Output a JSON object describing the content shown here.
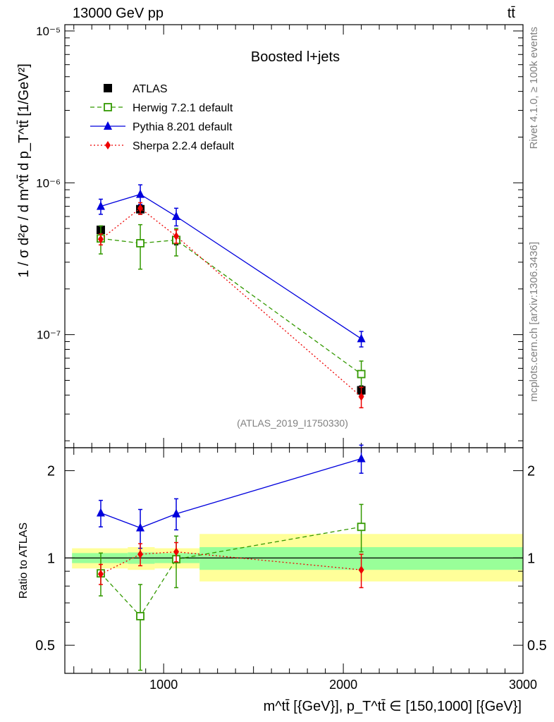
{
  "header": {
    "energy_label": "13000 GeV pp",
    "process_label": "tt̄"
  },
  "side": {
    "rivet_label": "Rivet 4.1.0, ≥ 100k events",
    "source_label": "mcplots.cern.ch [arXiv:1306.3436]"
  },
  "chart_data": [
    {
      "type": "line",
      "title": "Boosted l+jets",
      "analysis_label": "(ATLAS_2019_I1750330)",
      "ylabel": "1 / σ d²σ / d m^tt̄ d p_T^tt̄ [1/GeV²]",
      "yscale": "log",
      "ylim": [
        1.8e-08,
        1.1e-05
      ],
      "xlim": [
        450,
        3000
      ],
      "ytick_labels": [
        "10⁻⁷",
        "10⁻⁶",
        "10⁻⁵"
      ],
      "ytick_values": [
        1e-07,
        1e-06,
        1e-05
      ],
      "series": [
        {
          "name": "ATLAS",
          "color": "#000000",
          "marker": "square-filled",
          "x": [
            650,
            870,
            1070,
            2100
          ],
          "y": [
            4.9e-07,
            6.7e-07,
            4.2e-07,
            4.3e-08
          ],
          "yerr": [
            3e-08,
            5e-08,
            3e-08,
            3e-09
          ]
        },
        {
          "name": "Herwig 7.2.1 default",
          "color": "#339900",
          "marker": "square-open",
          "dash": "dashed",
          "x": [
            650,
            870,
            1070,
            2100
          ],
          "y": [
            4.3e-07,
            4e-07,
            4.2e-07,
            5.5e-08
          ],
          "err_lo": [
            3.4e-07,
            2.7e-07,
            3.3e-07,
            4.5e-08
          ],
          "err_hi": [
            5.2e-07,
            5.3e-07,
            5e-07,
            6.7e-08
          ]
        },
        {
          "name": "Pythia 8.201 default",
          "color": "#0000dd",
          "marker": "triangle",
          "dash": "solid",
          "x": [
            650,
            870,
            1070,
            2100
          ],
          "y": [
            7e-07,
            8.4e-07,
            6e-07,
            9.4e-08
          ],
          "err_lo": [
            6.2e-07,
            7.2e-07,
            5.2e-07,
            8.3e-08
          ],
          "err_hi": [
            7.8e-07,
            9.7e-07,
            6.8e-07,
            1.05e-07
          ]
        },
        {
          "name": "Sherpa 2.2.4 default",
          "color": "#ee0000",
          "marker": "diamond",
          "dash": "dotted",
          "x": [
            650,
            870,
            1070,
            2100
          ],
          "y": [
            4.25e-07,
            6.8e-07,
            4.45e-07,
            3.9e-08
          ],
          "err_lo": [
            3.9e-07,
            6.2e-07,
            4e-07,
            3.3e-08
          ],
          "err_hi": [
            4.6e-07,
            7.4e-07,
            4.9e-07,
            4.5e-08
          ]
        }
      ]
    },
    {
      "type": "line",
      "ylabel": "Ratio to ATLAS",
      "xlabel": "m^tt̄ [{GeV}], p_T^tt̄ ∈ [150,1000] [{GeV}]",
      "yscale": "log",
      "ylim": [
        0.4,
        2.4
      ],
      "xlim": [
        450,
        3000
      ],
      "xtick_labels": [
        "1000",
        "2000",
        "3000"
      ],
      "xtick_values": [
        1000,
        2000,
        3000
      ],
      "ytick_labels": [
        "0.5",
        "1",
        "2"
      ],
      "ytick_values": [
        0.5,
        1,
        2
      ],
      "uncertainty_bands": [
        {
          "x0": 490,
          "x1": 800,
          "stat_lo": 0.96,
          "stat_hi": 1.04,
          "tot_lo": 0.92,
          "tot_hi": 1.08
        },
        {
          "x0": 800,
          "x1": 950,
          "stat_lo": 0.955,
          "stat_hi": 1.045,
          "tot_lo": 0.91,
          "tot_hi": 1.09
        },
        {
          "x0": 950,
          "x1": 1200,
          "stat_lo": 0.96,
          "stat_hi": 1.04,
          "tot_lo": 0.92,
          "tot_hi": 1.08
        },
        {
          "x0": 1200,
          "x1": 3000,
          "stat_lo": 0.91,
          "stat_hi": 1.09,
          "tot_lo": 0.83,
          "tot_hi": 1.21
        }
      ],
      "band_colors": {
        "stat": "#99ff99",
        "total": "#ffff99"
      },
      "series": [
        {
          "name": "Herwig 7.2.1 default",
          "color": "#339900",
          "marker": "square-open",
          "dash": "dashed",
          "x": [
            650,
            870,
            1070,
            2100
          ],
          "y": [
            0.885,
            0.63,
            0.99,
            1.28
          ],
          "err_lo": [
            0.74,
            0.41,
            0.79,
            1.05
          ],
          "err_hi": [
            1.04,
            0.81,
            1.19,
            1.53
          ]
        },
        {
          "name": "Pythia 8.201 default",
          "color": "#0000dd",
          "marker": "triangle",
          "dash": "solid",
          "x": [
            650,
            870,
            1070,
            2100
          ],
          "y": [
            1.43,
            1.27,
            1.42,
            2.2
          ],
          "err_lo": [
            1.28,
            1.08,
            1.25,
            1.96
          ],
          "err_hi": [
            1.58,
            1.47,
            1.6,
            2.45
          ]
        },
        {
          "name": "Sherpa 2.2.4 default",
          "color": "#ee0000",
          "marker": "diamond",
          "dash": "dotted",
          "x": [
            650,
            870,
            1070,
            2100
          ],
          "y": [
            0.88,
            1.03,
            1.05,
            0.91
          ],
          "err_lo": [
            0.81,
            0.94,
            0.97,
            0.79
          ],
          "err_hi": [
            0.95,
            1.12,
            1.13,
            1.03
          ]
        }
      ]
    }
  ]
}
